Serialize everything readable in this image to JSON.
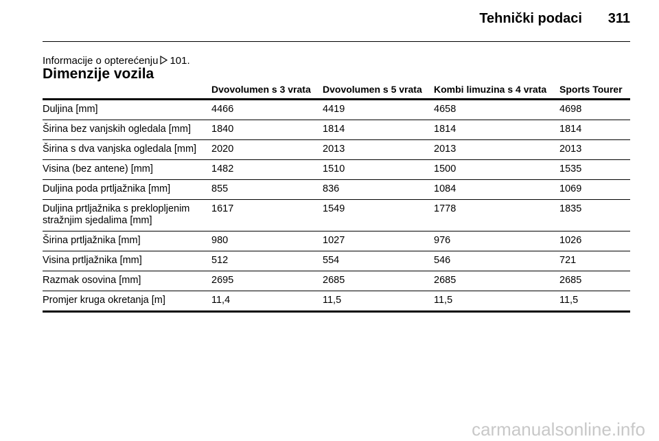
{
  "header": {
    "title": "Tehnički podaci",
    "page": "311"
  },
  "reference": {
    "text": "Informacije o opterećenju",
    "page": "101."
  },
  "section_title": "Dimenzije vozila",
  "table": {
    "columns": [
      "",
      "Dvovolumen s 3 vrata",
      "Dvovolumen s 5 vrata",
      "Kombi limuzina s 4 vrata",
      "Sports Tourer"
    ],
    "rows": [
      [
        "Duljina [mm]",
        "4466",
        "4419",
        "4658",
        "4698"
      ],
      [
        "Širina bez vanjskih ogledala [mm]",
        "1840",
        "1814",
        "1814",
        "1814"
      ],
      [
        "Širina s dva vanjska ogledala [mm]",
        "2020",
        "2013",
        "2013",
        "2013"
      ],
      [
        "Visina (bez antene) [mm]",
        "1482",
        "1510",
        "1500",
        "1535"
      ],
      [
        "Duljina poda prtljažnika [mm]",
        "855",
        "836",
        "1084",
        "1069"
      ],
      [
        "Duljina prtljažnika s preklopljenim stražnjim sjedalima [mm]",
        "1617",
        "1549",
        "1778",
        "1835"
      ],
      [
        "Širina prtljažnika [mm]",
        "980",
        "1027",
        "976",
        "1026"
      ],
      [
        "Visina prtljažnika [mm]",
        "512",
        "554",
        "546",
        "721"
      ],
      [
        "Razmak osovina [mm]",
        "2695",
        "2685",
        "2685",
        "2685"
      ],
      [
        "Promjer kruga okretanja [m]",
        "11,4",
        "11,5",
        "11,5",
        "11,5"
      ]
    ]
  },
  "watermark": "carmanualsonline.info"
}
